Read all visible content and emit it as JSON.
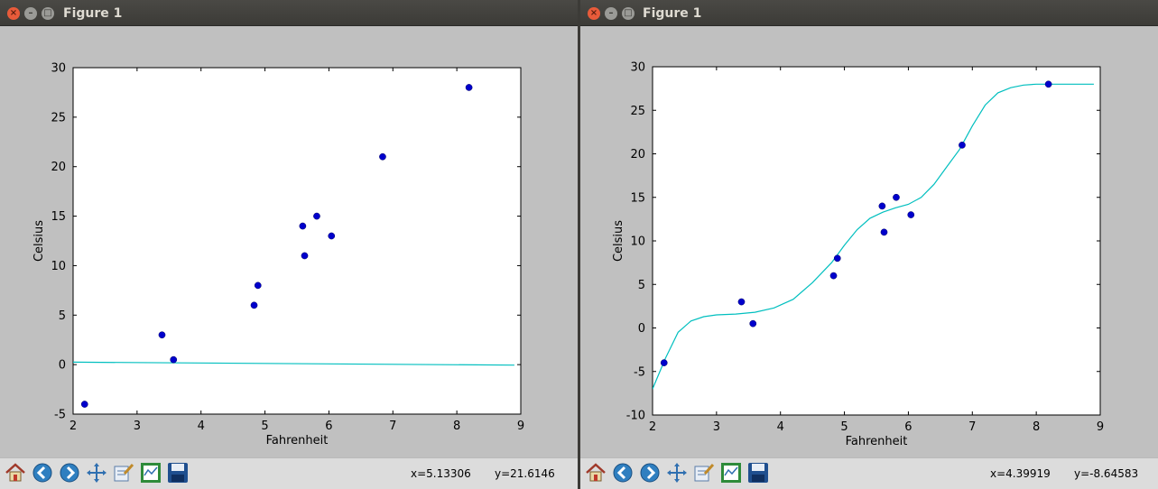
{
  "windows": [
    {
      "title": "Figure 1",
      "status": {
        "x": "x=5.13306",
        "y": "y=21.6146"
      },
      "chart_data": {
        "type": "scatter",
        "xlabel": "Fahrenheit",
        "ylabel": "Celsius",
        "xlim": [
          2,
          9
        ],
        "ylim": [
          -5,
          30
        ],
        "xticks": [
          2,
          3,
          4,
          5,
          6,
          7,
          8,
          9
        ],
        "yticks": [
          -5,
          0,
          5,
          10,
          15,
          20,
          25,
          30
        ],
        "grid": false,
        "points": {
          "color": "#0000cc",
          "x": [
            2.18,
            3.39,
            3.57,
            4.83,
            4.89,
            5.59,
            5.62,
            5.81,
            6.04,
            6.84,
            8.19
          ],
          "y": [
            -4,
            3,
            0.5,
            6,
            8,
            14,
            11,
            15,
            13,
            21,
            28
          ]
        },
        "line": {
          "color": "#00bfbf",
          "x": [
            2.0,
            8.9
          ],
          "y": [
            0.25,
            -0.05
          ]
        }
      }
    },
    {
      "title": "Figure 1",
      "status": {
        "x": "x=4.39919",
        "y": "y=-8.64583"
      },
      "chart_data": {
        "type": "scatter",
        "xlabel": "Fahrenheit",
        "ylabel": "Celsius",
        "xlim": [
          2,
          9
        ],
        "ylim": [
          -10,
          30
        ],
        "xticks": [
          2,
          3,
          4,
          5,
          6,
          7,
          8,
          9
        ],
        "yticks": [
          -10,
          -5,
          0,
          5,
          10,
          15,
          20,
          25,
          30
        ],
        "grid": false,
        "points": {
          "color": "#0000cc",
          "x": [
            2.18,
            3.39,
            3.57,
            4.83,
            4.89,
            5.59,
            5.62,
            5.81,
            6.04,
            6.84,
            8.19
          ],
          "y": [
            -4,
            3,
            0.5,
            6,
            8,
            14,
            11,
            15,
            13,
            21,
            28
          ]
        },
        "line": {
          "color": "#00bfbf",
          "x": [
            2.0,
            2.2,
            2.4,
            2.6,
            2.8,
            3.0,
            3.3,
            3.6,
            3.9,
            4.2,
            4.5,
            4.8,
            5.0,
            5.2,
            5.4,
            5.6,
            5.8,
            6.0,
            6.2,
            6.4,
            6.6,
            6.8,
            7.0,
            7.2,
            7.4,
            7.6,
            7.8,
            8.0,
            8.3,
            8.6,
            8.9
          ],
          "y": [
            -7,
            -3.5,
            -0.5,
            0.8,
            1.3,
            1.5,
            1.6,
            1.8,
            2.3,
            3.3,
            5.2,
            7.5,
            9.5,
            11.3,
            12.6,
            13.3,
            13.8,
            14.2,
            15.0,
            16.5,
            18.5,
            20.5,
            23.2,
            25.6,
            27.0,
            27.6,
            27.9,
            28.0,
            28.0,
            28.0,
            28.0
          ]
        }
      }
    }
  ],
  "toolbar": {
    "buttons": [
      {
        "name": "home-icon",
        "label": "Home"
      },
      {
        "name": "back-icon",
        "label": "Back"
      },
      {
        "name": "forward-icon",
        "label": "Forward"
      },
      {
        "name": "pan-icon",
        "label": "Pan"
      },
      {
        "name": "zoom-icon",
        "label": "Zoom"
      },
      {
        "name": "subplots-icon",
        "label": "Subplots"
      },
      {
        "name": "save-icon",
        "label": "Save"
      }
    ]
  }
}
